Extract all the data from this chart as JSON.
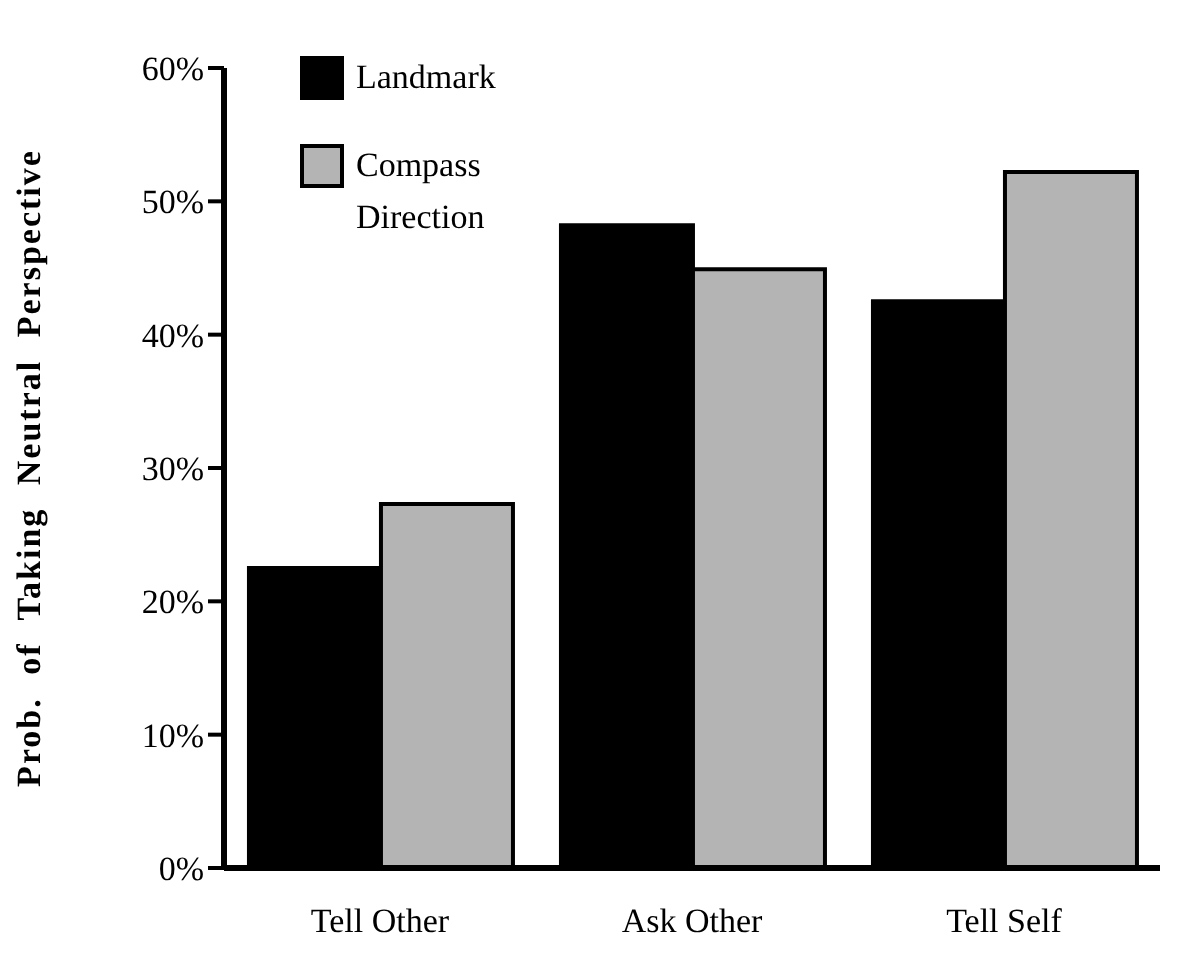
{
  "chart_data": {
    "type": "bar",
    "ylabel": "Prob. of Taking Neutral Perspective",
    "categories": [
      "Tell Other",
      "Ask Other",
      "Tell Self"
    ],
    "series": [
      {
        "name": "Landmark",
        "color": "#000000",
        "values": [
          22.5,
          48.2,
          42.5
        ]
      },
      {
        "name": "Compass Direction",
        "color": "#b4b4b4",
        "values": [
          27.3,
          44.9,
          52.2
        ]
      }
    ],
    "ylim": [
      0,
      60
    ],
    "yticks": [
      {
        "value": 0,
        "label": "0%"
      },
      {
        "value": 10,
        "label": "10%"
      },
      {
        "value": 20,
        "label": "20%"
      },
      {
        "value": 30,
        "label": "30%"
      },
      {
        "value": 40,
        "label": "40%"
      },
      {
        "value": 50,
        "label": "50%"
      },
      {
        "value": 60,
        "label": "60%"
      }
    ],
    "grid": false,
    "legend": "top left"
  }
}
